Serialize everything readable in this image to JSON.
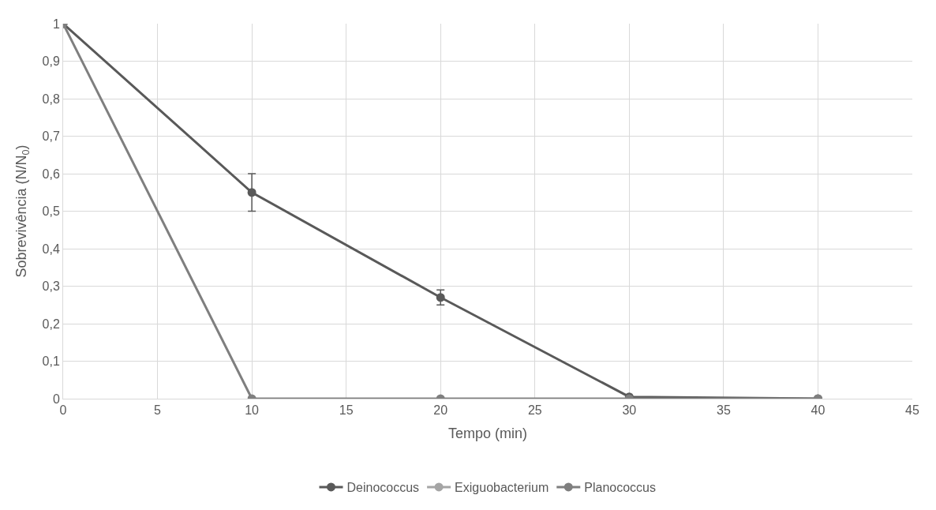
{
  "chart_data": {
    "type": "line",
    "xlabel": "Tempo (min)",
    "ylabel": "Sobrevivência (N/N$_{0}$)",
    "x": [
      0,
      10,
      20,
      30,
      40
    ],
    "series": [
      {
        "name": "Deinococcus",
        "color": "#595959",
        "values": [
          1,
          0.55,
          0.27,
          0.005,
          0
        ],
        "errors": [
          null,
          0.05,
          0.02,
          null,
          null
        ]
      },
      {
        "name": "Exiguobacterium",
        "color": "#a5a5a5",
        "values": [
          null,
          null,
          null,
          null,
          null
        ]
      },
      {
        "name": "Planococcus",
        "color": "#7f7f7f",
        "values": [
          1,
          0,
          0,
          0,
          0
        ]
      }
    ],
    "xlim": [
      0,
      45
    ],
    "xticks": [
      0,
      5,
      10,
      15,
      20,
      25,
      30,
      35,
      40,
      45
    ],
    "ylim": [
      0,
      1
    ],
    "yticks": [
      {
        "value": 0,
        "label": "0"
      },
      {
        "value": 0.1,
        "label": "0,1"
      },
      {
        "value": 0.2,
        "label": "0,2"
      },
      {
        "value": 0.3,
        "label": "0,3"
      },
      {
        "value": 0.4,
        "label": "0,4"
      },
      {
        "value": 0.5,
        "label": "0,5"
      },
      {
        "value": 0.6,
        "label": "0,6"
      },
      {
        "value": 0.7,
        "label": "0,7"
      },
      {
        "value": 0.8,
        "label": "0,8"
      },
      {
        "value": 0.9,
        "label": "0,9"
      },
      {
        "value": 1,
        "label": "1"
      }
    ],
    "grid": true,
    "legend": "bottom",
    "marker": "circle",
    "line_style": "solid"
  }
}
